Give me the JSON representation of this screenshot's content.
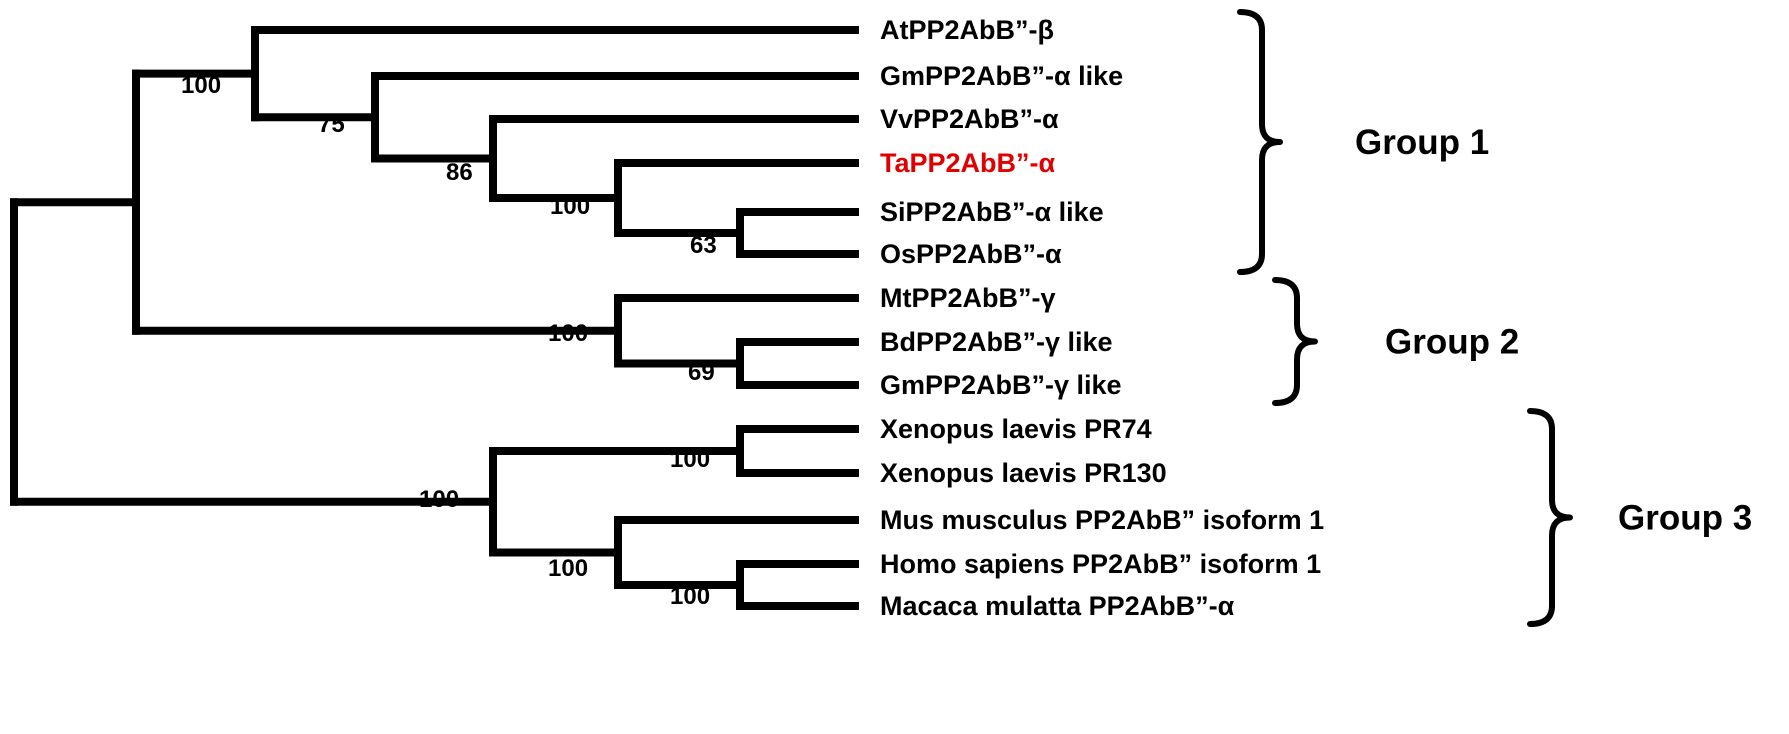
{
  "colors": {
    "highlight": "#e00000",
    "line": "#000000"
  },
  "leaves": [
    {
      "label": "AtPP2AbB”-β"
    },
    {
      "label": "GmPP2AbB”-α like"
    },
    {
      "label": "VvPP2AbB”-α"
    },
    {
      "label": "TaPP2AbB”-α",
      "highlight": true
    },
    {
      "label": "SiPP2AbB”-α like"
    },
    {
      "label": "OsPP2AbB”-α"
    },
    {
      "label": "MtPP2AbB”-γ"
    },
    {
      "label": "BdPP2AbB”-γ like"
    },
    {
      "label": "GmPP2AbB”-γ like"
    },
    {
      "label": "Xenopus laevis PR74"
    },
    {
      "label": "Xenopus laevis PR130"
    },
    {
      "label": "Mus musculus PP2AbB” isoform 1"
    },
    {
      "label": "Homo sapiens PP2AbB” isoform 1"
    },
    {
      "label": "Macaca mulatta PP2AbB”-α"
    }
  ],
  "bootstraps": {
    "n_at": "100",
    "n_gm": "75",
    "n_vv": "86",
    "n_ta": "100",
    "n_si": "63",
    "n_bd_gm": "69",
    "n_g2": "100",
    "n_xen": "100",
    "n_mam": "100",
    "n_hm": "100",
    "n_g3": "100"
  },
  "groups": [
    {
      "label": "Group 1",
      "first": 0,
      "last": 5
    },
    {
      "label": "Group 2",
      "first": 6,
      "last": 8
    },
    {
      "label": "Group 3",
      "first": 9,
      "last": 13
    }
  ]
}
